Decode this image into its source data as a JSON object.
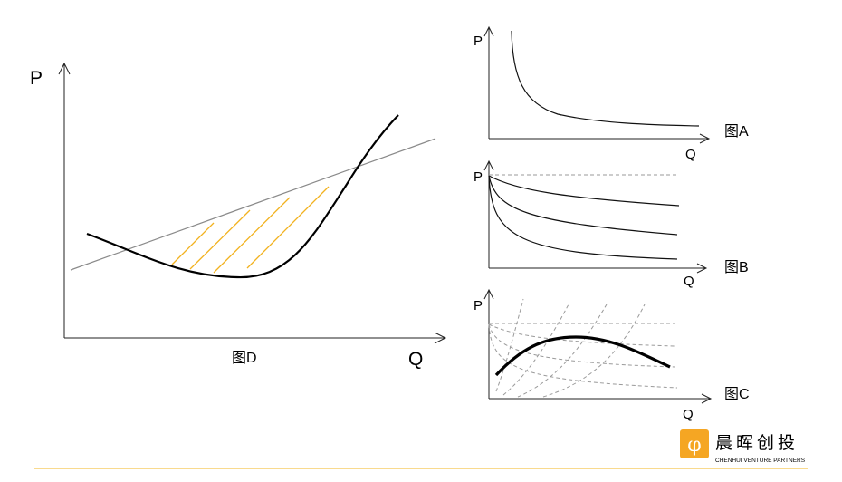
{
  "diagram_d": {
    "y_label": "P",
    "x_label": "Q",
    "caption": "图D"
  },
  "diagram_a": {
    "y_label": "P",
    "x_label": "Q",
    "caption": "图A"
  },
  "diagram_b": {
    "y_label": "P",
    "x_label": "Q",
    "caption": "图B"
  },
  "diagram_c": {
    "y_label": "P",
    "x_label": "Q",
    "caption": "图C"
  },
  "brand": {
    "name_cn": "晨晖创投",
    "name_en": "CHENHUI VENTURE PARTNERS",
    "logo_glyph": "φ",
    "logo_color": "#f5a623",
    "accent_line_color": "#f5c34a"
  }
}
